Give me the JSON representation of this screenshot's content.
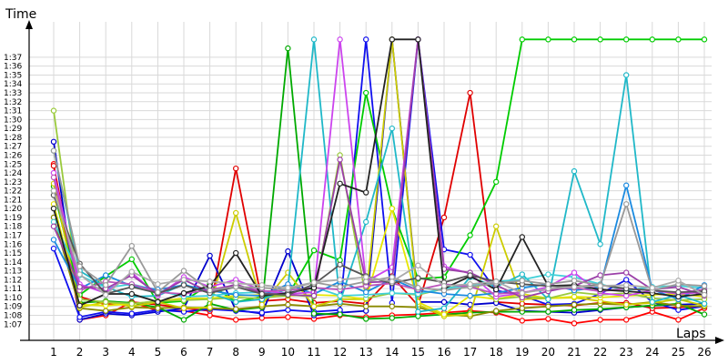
{
  "chart_data": {
    "type": "line",
    "title": "",
    "xlabel": "Laps",
    "ylabel": "Time",
    "x": [
      1,
      2,
      3,
      4,
      5,
      6,
      7,
      8,
      9,
      10,
      11,
      12,
      13,
      14,
      15,
      16,
      17,
      18,
      19,
      20,
      21,
      22,
      23,
      24,
      25,
      26
    ],
    "xlim": [
      1,
      26
    ],
    "ylim_seconds": [
      66,
      99
    ],
    "grid": true,
    "legend": "none",
    "y_ticks": [
      "1:07",
      "1:08",
      "1:09",
      "1:10",
      "1:11",
      "1:12",
      "1:13",
      "1:14",
      "1:15",
      "1:16",
      "1:17",
      "1:18",
      "1:19",
      "1:20",
      "1:21",
      "1:22",
      "1:23",
      "1:24",
      "1:25",
      "1:26",
      "1:27",
      "1:28",
      "1:29",
      "1:30",
      "1:31",
      "1:32",
      "1:33",
      "1:34",
      "1:35",
      "1:36",
      "1:37"
    ],
    "series_values_unit": "seconds",
    "series": [
      {
        "color": "#ff0000",
        "values": [
          85,
          67.5,
          68,
          69.5,
          68.5,
          68.5,
          68,
          67.5,
          67.7,
          67.8,
          67.6,
          68,
          67.8,
          68,
          68.1,
          68.3,
          68.5,
          68.3,
          67.4,
          67.6,
          67.1,
          67.5,
          67.5,
          68.4,
          67.5,
          68.8
        ]
      },
      {
        "color": "#e00000",
        "values": [
          84.8,
          70.1,
          69.2,
          69.5,
          69.2,
          68.8,
          68.5,
          84.5,
          69.6,
          69.8,
          69.4,
          69.6,
          69.3,
          72.4,
          69.1,
          79,
          93,
          69.5,
          69.3,
          69.2,
          69.1,
          69.4,
          69.4,
          68.8,
          68.9,
          69
        ]
      },
      {
        "color": "#0000cc",
        "values": [
          87.5,
          67.5,
          68.2,
          68,
          68.4,
          68.8,
          74.7,
          68.6,
          68.2,
          75.2,
          68,
          68.3,
          68.5,
          99,
          69.5,
          69.5,
          69.2,
          69.4,
          68.5,
          68.4,
          68.3,
          68.6,
          68.9,
          69.1,
          69.2,
          69.3
        ]
      },
      {
        "color": "#1010ee",
        "values": [
          75.5,
          67.8,
          68.4,
          68.2,
          68.6,
          68.4,
          68.7,
          68.5,
          68.3,
          68.6,
          68.4,
          68.6,
          99,
          69.4,
          99,
          75.4,
          74.8,
          70.8,
          70.2,
          69.2,
          69.3,
          70.4,
          72,
          69.5,
          68.6,
          69
        ]
      },
      {
        "color": "#00aa00",
        "values": [
          82.5,
          69.4,
          69.6,
          69.4,
          68.9,
          67.5,
          69.3,
          68.6,
          68.9,
          98,
          68.2,
          68.1,
          67.6,
          67.7,
          67.9,
          68.1,
          68.3,
          68.4,
          68.4,
          68.4,
          68.6,
          68.7,
          68.9,
          69.1,
          69.3,
          68.1
        ]
      },
      {
        "color": "#00cc00",
        "values": [
          82,
          70.3,
          72.4,
          74.3,
          69.4,
          69.6,
          71.5,
          69.5,
          70.1,
          70.2,
          75.3,
          74.2,
          93,
          80,
          72.1,
          72.3,
          77,
          83,
          99,
          99,
          99,
          99,
          99,
          99,
          99,
          99
        ]
      },
      {
        "color": "#8a8a00",
        "values": [
          79,
          68.8,
          68.5,
          68.9,
          68.8,
          68.9,
          68.8,
          68.7,
          69,
          69.2,
          69,
          69.3,
          69,
          69,
          68.9,
          68.1,
          67.9,
          68.5,
          68.8,
          69,
          69.2,
          69.3,
          69.2,
          69.5,
          69.1,
          69
        ]
      },
      {
        "color": "#cccc00",
        "values": [
          82.8,
          68.9,
          69.5,
          69,
          69.5,
          68.8,
          68.9,
          79.5,
          69.2,
          72.8,
          69,
          69.8,
          69.8,
          99,
          69.2,
          67.9,
          68.1,
          78,
          69.8,
          69.9,
          70,
          69.6,
          69.2,
          69.4,
          69.8,
          69.1
        ]
      },
      {
        "color": "#e6e600",
        "values": [
          80.5,
          69.2,
          69.1,
          69.3,
          69.6,
          69.9,
          69.9,
          70.2,
          70.3,
          70.2,
          70.3,
          70.2,
          69.8,
          80,
          69.5,
          68.1,
          70.2,
          69.8,
          70.4,
          69.9,
          70.1,
          70,
          70.2,
          70.3,
          70.4,
          70.1
        ]
      },
      {
        "color": "#9aca3c",
        "values": [
          91,
          69.8,
          69.5,
          69.3,
          69.6,
          69.7,
          69.8,
          70,
          69.9,
          70.3,
          70.1,
          86,
          69.9,
          70.5,
          70.3,
          71,
          71.5,
          69.8,
          70.1,
          69.9,
          70.6,
          70.3,
          70.5,
          69.9,
          69.7,
          69.8
        ]
      },
      {
        "color": "#20b8c8",
        "values": [
          86.5,
          73,
          71.2,
          70.1,
          70.2,
          71.5,
          70.5,
          69.5,
          69.8,
          71,
          99,
          69.5,
          78.5,
          89,
          68.4,
          68.8,
          72.3,
          71.2,
          72.6,
          69.8,
          84.2,
          76,
          95,
          69.5,
          70.3,
          69.3
        ]
      },
      {
        "color": "#40d0d8",
        "values": [
          78.5,
          72.5,
          71.1,
          71.5,
          70.8,
          70.1,
          70.2,
          70.5,
          70.6,
          70.5,
          71.2,
          70.2,
          70.3,
          70.5,
          70.4,
          71,
          71.4,
          71.8,
          72,
          72.6,
          72.3,
          71.5,
          70.8,
          71.2,
          71.3,
          71.1
        ]
      },
      {
        "color": "#1a8ae0",
        "values": [
          76.5,
          71,
          72.5,
          71.3,
          70.9,
          71.4,
          70.8,
          70.3,
          70.2,
          71.5,
          70.4,
          71.8,
          70.6,
          72.1,
          70.8,
          70.4,
          70.2,
          70.5,
          71.1,
          71.5,
          70.8,
          71.2,
          82.6,
          70.9,
          69.8,
          71.4
        ]
      },
      {
        "color": "#cc44ee",
        "values": [
          84,
          71.5,
          70.5,
          72.8,
          70.2,
          72.3,
          71.2,
          72,
          70.8,
          70.4,
          70.6,
          99,
          71.8,
          73.4,
          99,
          73.5,
          72.7,
          70.1,
          70.5,
          71.2,
          72.8,
          70.5,
          70.2,
          70.8,
          70.4,
          70.6
        ]
      },
      {
        "color": "#bb55bb",
        "values": [
          83.5,
          70.8,
          71.8,
          71.5,
          70.6,
          70.4,
          70.9,
          71.4,
          70.7,
          70.8,
          71.1,
          70.9,
          71.3,
          71.6,
          70.9,
          71.5,
          71.2,
          70.4,
          70.6,
          70.9,
          71.1,
          70.7,
          71,
          70.8,
          70.5,
          70.9
        ]
      },
      {
        "color": "#9b3fa8",
        "values": [
          78,
          71.2,
          71,
          72.5,
          70.4,
          72,
          70.6,
          71.5,
          70.5,
          70.3,
          70.2,
          85.5,
          71.7,
          71.8,
          99,
          73.2,
          72.8,
          71.4,
          70,
          70.7,
          71.3,
          72.5,
          72.8,
          70.9,
          71.2,
          70.2
        ]
      },
      {
        "color": "#222222",
        "values": [
          80,
          69.1,
          70.4,
          70.4,
          69.5,
          70.5,
          71.3,
          75,
          70.2,
          70.5,
          71.1,
          82.8,
          81.8,
          99,
          99,
          71,
          72.4,
          70.9,
          76.8,
          71.3,
          71.4,
          70.9,
          70.7,
          70.5,
          70.1,
          70.4
        ]
      },
      {
        "color": "#555555",
        "values": [
          81.5,
          73.8,
          70.4,
          71.2,
          70.5,
          71.4,
          70.5,
          71.2,
          70.4,
          70.3,
          71.5,
          73.7,
          72.4,
          71.6,
          72.2,
          71.7,
          72.5,
          71.8,
          71.5,
          71.3,
          71.2,
          71.4,
          71,
          70.8,
          70.6,
          70.7
        ]
      },
      {
        "color": "#999999",
        "values": [
          86.5,
          73.5,
          71.4,
          75.8,
          70.6,
          73,
          70.8,
          71.2,
          71.1,
          70.9,
          71.7,
          71.2,
          71.8,
          72.3,
          71.1,
          70.8,
          71.2,
          71.6,
          71.9,
          71.5,
          71.9,
          71.4,
          80.5,
          70.8,
          71.5,
          71.3
        ]
      },
      {
        "color": "#aaaaaa",
        "values": [
          82,
          72.6,
          70.3,
          72.9,
          71.5,
          72,
          71.8,
          71.6,
          71.4,
          71.1,
          71.7,
          72,
          72.3,
          71.8,
          73.6,
          71.3,
          71.5,
          71.8,
          70.5,
          71,
          71.2,
          71.3,
          71.4,
          71.1,
          71.9,
          70.3
        ]
      }
    ]
  }
}
